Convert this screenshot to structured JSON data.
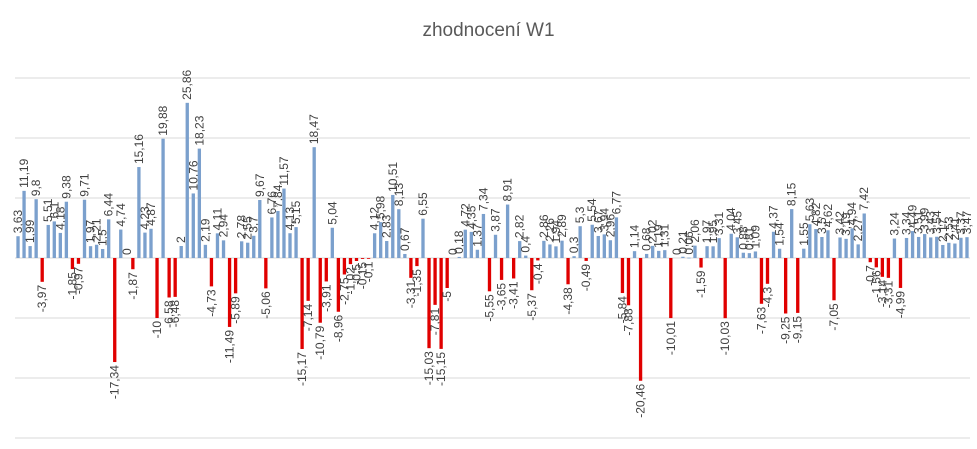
{
  "chart_data": {
    "type": "bar",
    "title": "zhodnocení W1",
    "xlabel": "",
    "ylabel": "",
    "ylim": [
      -25,
      30
    ],
    "grid": true,
    "legend": "none",
    "colors": {
      "positive": "#7ba0cd",
      "negative": "#e00000"
    },
    "values": [
      3.63,
      11.19,
      1.99,
      9.8,
      -3.97,
      5.51,
      6.1,
      4.18,
      9.38,
      -1.85,
      -0.97,
      9.71,
      1.97,
      2.21,
      1.5,
      6.44,
      -17.34,
      4.74,
      0,
      -1.87,
      15.16,
      4.23,
      4.87,
      -10,
      19.88,
      -6.58,
      -6.48,
      2,
      25.86,
      10.76,
      18.23,
      2.19,
      -4.73,
      4.11,
      2.94,
      -11.49,
      -5.89,
      2.78,
      2.55,
      3.7,
      9.67,
      -5.06,
      6.76,
      7.84,
      11.57,
      4.13,
      5.15,
      -15.17,
      -7.14,
      18.47,
      -10.79,
      -3.91,
      5.04,
      -8.96,
      -2.75,
      -1.02,
      -0.5,
      -0.15,
      -0.1,
      4.12,
      5.98,
      2.83,
      10.51,
      8.13,
      0.67,
      -3.31,
      -1.35,
      6.55,
      -15.03,
      -7.81,
      -15.15,
      -5,
      0,
      0.18,
      4.72,
      4.35,
      1.37,
      7.34,
      -5.55,
      3.87,
      -3.65,
      8.91,
      -3.41,
      2.82,
      0.4,
      -5.37,
      -0.4,
      2.86,
      2.26,
      1.94,
      2.89,
      -4.38,
      0.3,
      5.3,
      -0.49,
      5.54,
      3.67,
      3.94,
      2.96,
      6.77,
      -5.84,
      -7.88,
      1.14,
      -20.46,
      0.68,
      2.02,
      1.19,
      1.31,
      -10.01,
      0,
      0.21,
      0.06,
      2.06,
      -1.59,
      1.97,
      1.95,
      3.31,
      -10.03,
      4.04,
      3.45,
      0.88,
      0.81,
      1.09,
      -7.63,
      -4.3,
      4.37,
      1.54,
      -9.25,
      8.15,
      -9.15,
      1.55,
      5.63,
      4.82,
      3.5,
      4.62,
      -7.05,
      3.42,
      3.19,
      4.94,
      2.27,
      7.42,
      -0.7,
      -1.56,
      -3.14,
      -3.31,
      3.24,
      -4.99,
      3.34,
      4.49,
      3.51,
      3.99,
      3.43,
      3.54,
      2.17,
      2.53,
      2.41,
      3.37,
      3.47
    ]
  }
}
